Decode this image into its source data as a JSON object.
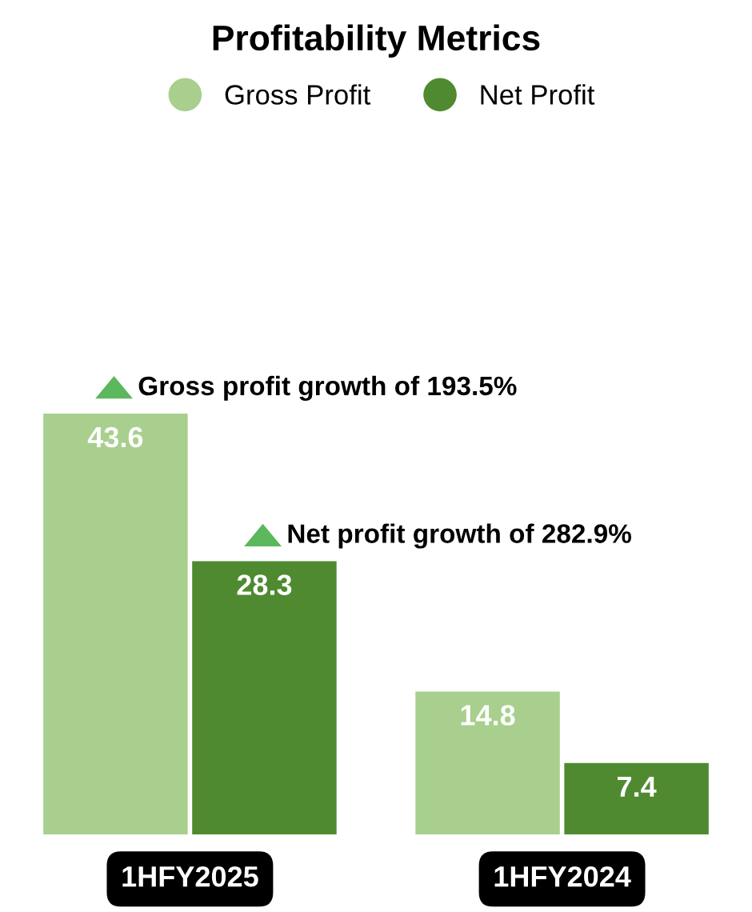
{
  "chart_data": {
    "type": "bar",
    "title": "Profitability Metrics",
    "categories": [
      "1HFY2025",
      "1HFY2024"
    ],
    "series": [
      {
        "name": "Gross Profit",
        "color": "#a8cf8e",
        "values": [
          43.6,
          14.8
        ]
      },
      {
        "name": "Net Profit",
        "color": "#4f8a30",
        "values": [
          28.3,
          7.4
        ]
      }
    ],
    "data_labels": true,
    "legend": "top",
    "marker": "circle",
    "tick_labels": "x",
    "grid": false,
    "annotations": [
      "Gross profit growth of 193.5%",
      "Net profit growth of 282.9%"
    ]
  }
}
